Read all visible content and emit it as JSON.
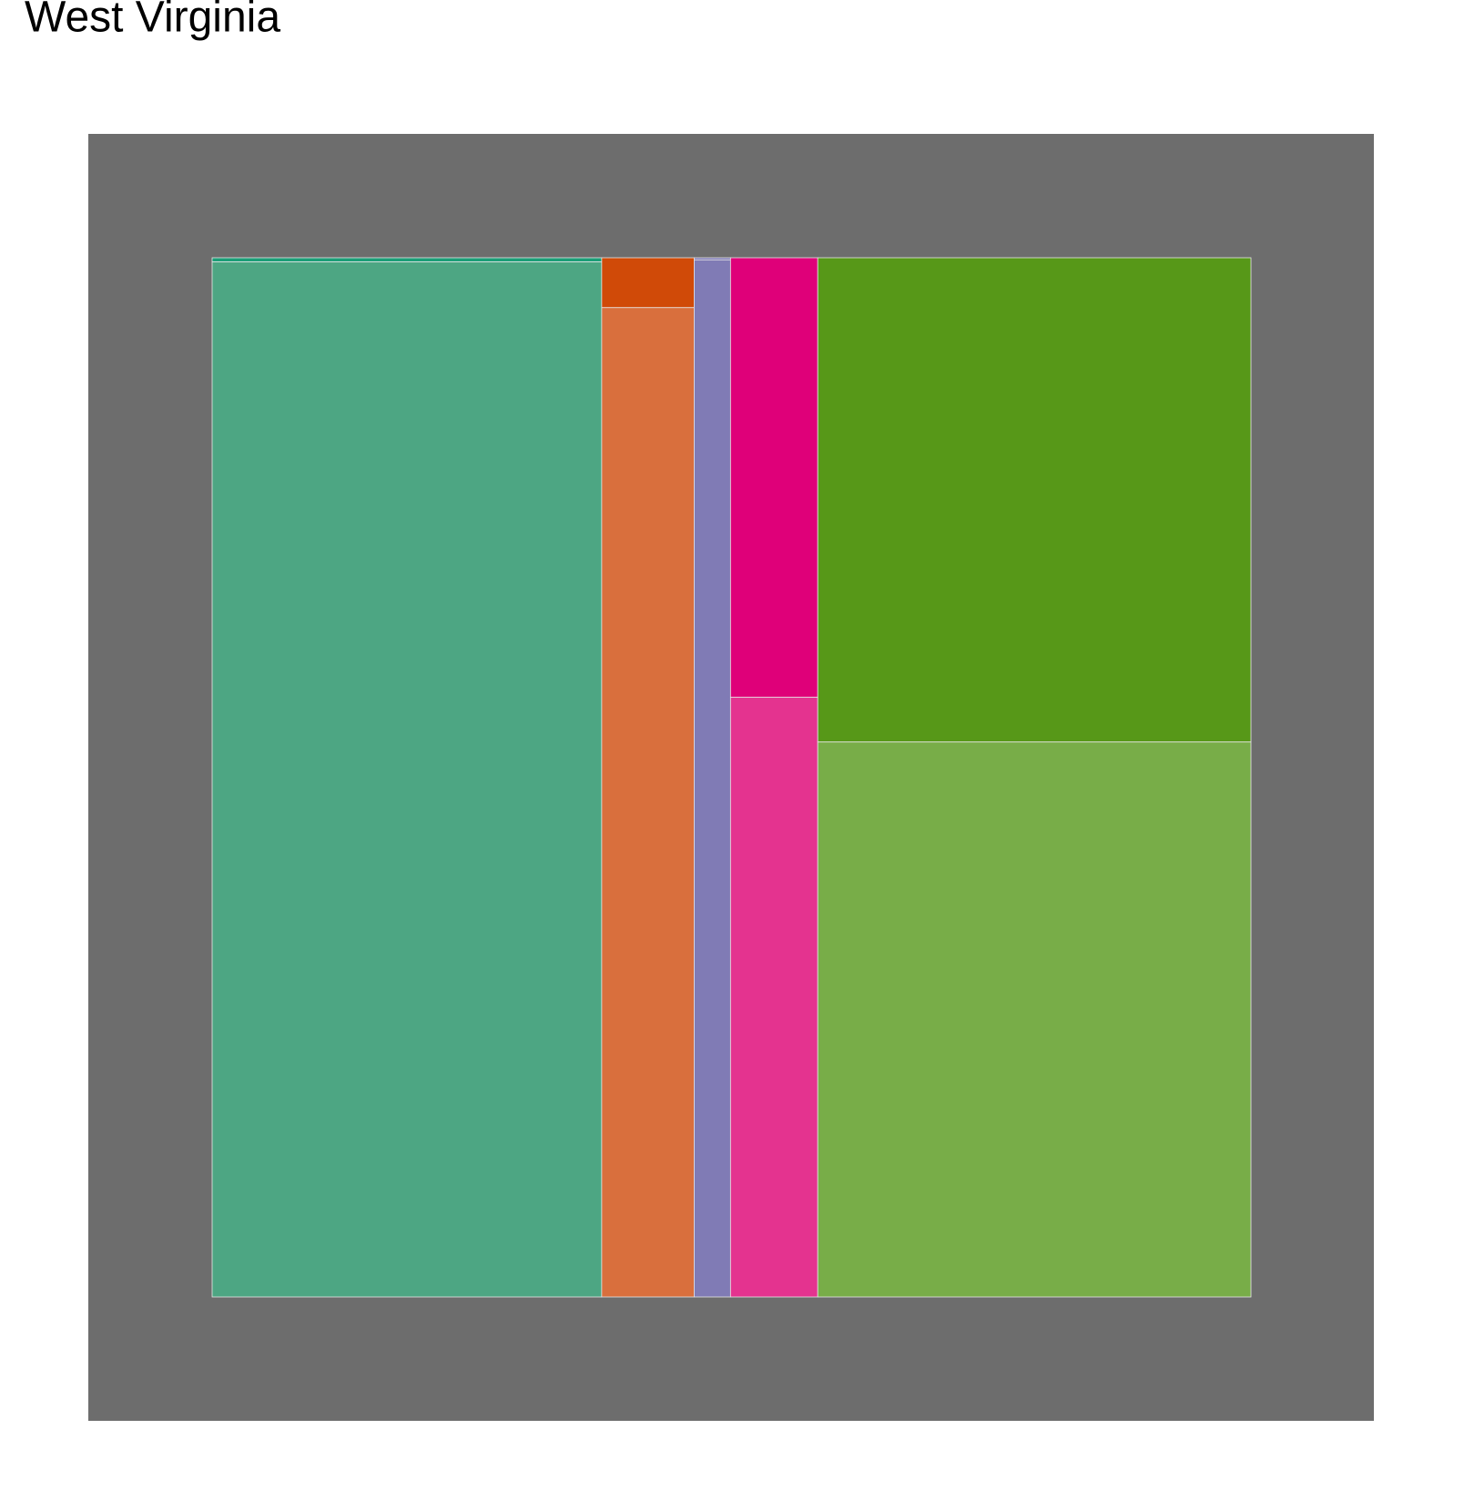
{
  "chart_data": {
    "type": "mosaic",
    "title": "West Virginia",
    "widths": [
      37.5,
      8.9,
      3.5,
      8.4,
      41.7
    ],
    "series": [
      {
        "colors": [
          "#1b9e77",
          "#d04a08",
          "#7570b3",
          "#df0079",
          "#579818"
        ],
        "values": [
          0.4,
          4.8,
          0.2,
          42.3,
          46.6
        ]
      },
      {
        "colors": [
          "#4da683",
          "#d96f3d",
          "#807bb5",
          "#e4338f",
          "#78ad48"
        ],
        "values": [
          99.6,
          95.2,
          99.8,
          57.7,
          53.4
        ]
      }
    ],
    "panel_color": "#6d6d6d"
  }
}
